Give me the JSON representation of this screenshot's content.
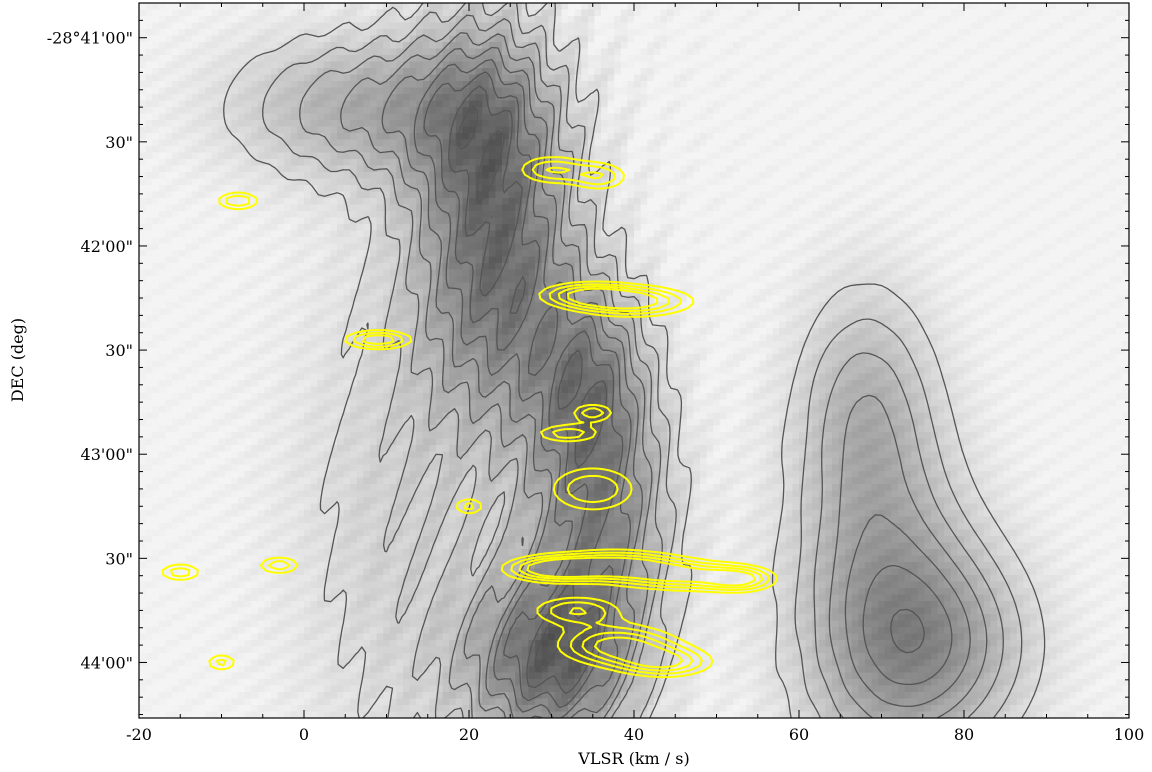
{
  "chart_data": {
    "type": "heatmap",
    "title": "",
    "xlabel": "VLSR (km / s)",
    "ylabel": "DEC (deg)",
    "xlim": [
      -20,
      100
    ],
    "x_ticks": [
      {
        "value": -20,
        "label": "-20"
      },
      {
        "value": 0,
        "label": "0"
      },
      {
        "value": 20,
        "label": "20"
      },
      {
        "value": 40,
        "label": "40"
      },
      {
        "value": 60,
        "label": "60"
      },
      {
        "value": 80,
        "label": "80"
      },
      {
        "value": 100,
        "label": "100"
      }
    ],
    "ylim_arcsec_offset": [
      0,
      206
    ],
    "y_ticks": [
      {
        "value": 10,
        "label": "-28°41'00\""
      },
      {
        "value": 40,
        "label": "30\""
      },
      {
        "value": 70,
        "label": "42'00\""
      },
      {
        "value": 100,
        "label": "30\""
      },
      {
        "value": 130,
        "label": "43'00\""
      },
      {
        "value": 160,
        "label": "30\""
      },
      {
        "value": 190,
        "label": "44'00\""
      }
    ],
    "background": "grayscale position-velocity map",
    "series": [
      {
        "color": "#555555"
      },
      {
        "color": "#ffff00"
      }
    ],
    "gray_features": [
      {
        "v": 24,
        "d": 80,
        "sv": 7,
        "sd": 30,
        "a": 0.55
      },
      {
        "v": 22,
        "d": 35,
        "sv": 6,
        "sd": 25,
        "a": 0.4
      },
      {
        "v": 30,
        "d": 190,
        "sv": 7,
        "sd": 18,
        "a": 0.65
      },
      {
        "v": 36,
        "d": 150,
        "sv": 6,
        "sd": 25,
        "a": 0.5
      },
      {
        "v": 8,
        "d": 30,
        "sv": 12,
        "sd": 15,
        "a": 0.35
      },
      {
        "v": 70,
        "d": 175,
        "sv": 8,
        "sd": 35,
        "a": 0.4
      },
      {
        "v": 68,
        "d": 115,
        "sv": 6,
        "sd": 25,
        "a": 0.28
      },
      {
        "v": 78,
        "d": 185,
        "sv": 8,
        "sd": 20,
        "a": 0.3
      },
      {
        "v": 12,
        "d": 150,
        "sv": 10,
        "sd": 60,
        "a": 0.18
      },
      {
        "v": 35,
        "d": 110,
        "sv": 5,
        "sd": 20,
        "a": 0.45
      }
    ],
    "gray_contour_levels": [
      0.12,
      0.2,
      0.28,
      0.36,
      0.44,
      0.52,
      0.6,
      0.68,
      0.76,
      0.84
    ],
    "yellow_features": [
      {
        "v": 30,
        "d": 163,
        "sv": 4,
        "sd": 2.5,
        "a": 0.9
      },
      {
        "v": 38,
        "d": 162,
        "sv": 5,
        "sd": 3,
        "a": 0.85
      },
      {
        "v": 46,
        "d": 165,
        "sv": 5,
        "sd": 3,
        "a": 0.75
      },
      {
        "v": 53,
        "d": 166,
        "sv": 3,
        "sd": 2.5,
        "a": 0.7
      },
      {
        "v": 38,
        "d": 185,
        "sv": 5,
        "sd": 4,
        "a": 0.85
      },
      {
        "v": 44,
        "d": 190,
        "sv": 4,
        "sd": 3,
        "a": 0.7
      },
      {
        "v": 33,
        "d": 175,
        "sv": 4,
        "sd": 3,
        "a": 0.6
      },
      {
        "v": 40,
        "d": 86,
        "sv": 5,
        "sd": 3,
        "a": 0.85
      },
      {
        "v": 34,
        "d": 84,
        "sv": 4,
        "sd": 2.5,
        "a": 0.65
      },
      {
        "v": 35,
        "d": 140,
        "sv": 4,
        "sd": 5,
        "a": 0.6
      },
      {
        "v": 9,
        "d": 97,
        "sv": 3,
        "sd": 2,
        "a": 0.75
      },
      {
        "v": 30,
        "d": 48,
        "sv": 3,
        "sd": 3,
        "a": 0.6
      },
      {
        "v": 36,
        "d": 50,
        "sv": 2.5,
        "sd": 3,
        "a": 0.55
      },
      {
        "v": 32,
        "d": 124,
        "sv": 3,
        "sd": 2,
        "a": 0.55
      },
      {
        "v": 35,
        "d": 118,
        "sv": 2,
        "sd": 2,
        "a": 0.55
      },
      {
        "v": -8,
        "d": 57,
        "sv": 2,
        "sd": 2,
        "a": 0.6
      },
      {
        "v": -15,
        "d": 164,
        "sv": 2,
        "sd": 2,
        "a": 0.55
      },
      {
        "v": -3,
        "d": 162,
        "sv": 2,
        "sd": 2,
        "a": 0.55
      },
      {
        "v": -10,
        "d": 190,
        "sv": 1.5,
        "sd": 2,
        "a": 0.5
      },
      {
        "v": 20,
        "d": 145,
        "sv": 1.5,
        "sd": 2,
        "a": 0.5
      }
    ],
    "yellow_contour_levels": [
      0.3,
      0.45,
      0.6,
      0.75
    ]
  }
}
